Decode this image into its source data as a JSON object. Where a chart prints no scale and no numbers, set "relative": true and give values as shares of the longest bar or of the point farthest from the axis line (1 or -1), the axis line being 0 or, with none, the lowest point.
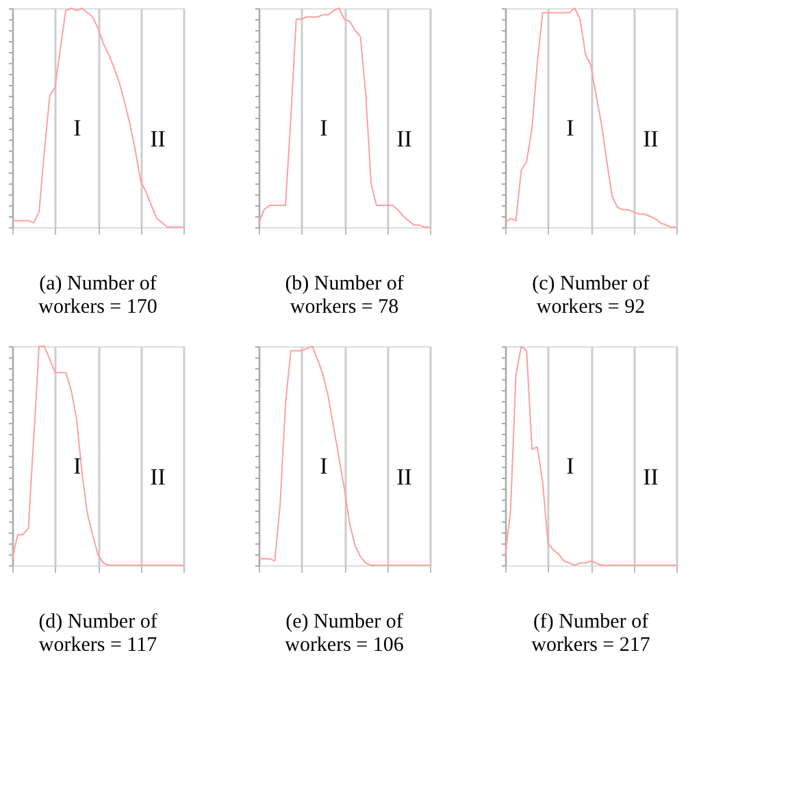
{
  "chart_data": [
    {
      "type": "line",
      "relative": true,
      "title": "(a) Number of workers = 170",
      "grid": "x",
      "tick_labels": false,
      "marker": "none",
      "line_style": "solid",
      "categories": [
        null,
        null,
        null,
        null,
        null,
        null,
        null,
        null,
        null,
        null,
        null,
        null,
        null,
        null,
        null,
        null,
        null,
        null,
        null,
        null,
        null,
        null,
        null,
        null,
        null,
        null,
        null,
        null,
        null,
        null,
        null,
        null,
        null
      ],
      "series": [
        {
          "color": "#ff9f9f",
          "values": [
            0.03,
            0.03,
            0.03,
            0.03,
            0.02,
            0.07,
            0.35,
            0.6,
            0.64,
            0.82,
            0.99,
            1.0,
            0.99,
            1.0,
            0.98,
            0.96,
            0.91,
            0.84,
            0.79,
            0.73,
            0.66,
            0.57,
            0.47,
            0.35,
            0.21,
            0.16,
            0.1,
            0.04,
            0.02,
            0.0,
            0.0,
            0.0,
            0.0
          ]
        }
      ],
      "annotations": [
        "I",
        "II"
      ]
    },
    {
      "type": "line",
      "relative": true,
      "title": "(b) Number of workers = 78",
      "grid": "x",
      "tick_labels": false,
      "marker": "none",
      "line_style": "solid",
      "categories": [
        null,
        null,
        null,
        null,
        null,
        null,
        null,
        null,
        null,
        null,
        null,
        null,
        null,
        null,
        null,
        null,
        null,
        null,
        null,
        null,
        null,
        null,
        null,
        null,
        null,
        null,
        null,
        null,
        null,
        null,
        null,
        null,
        null
      ],
      "series": [
        {
          "color": "#ff9f9f",
          "values": [
            0.02,
            0.08,
            0.1,
            0.1,
            0.1,
            0.1,
            0.5,
            0.95,
            0.95,
            0.96,
            0.96,
            0.96,
            0.97,
            0.97,
            0.99,
            1.0,
            0.95,
            0.94,
            0.9,
            0.87,
            0.61,
            0.2,
            0.1,
            0.1,
            0.1,
            0.1,
            0.08,
            0.05,
            0.03,
            0.01,
            0.01,
            0.0,
            0.0
          ]
        }
      ],
      "annotations": [
        "I",
        "II"
      ]
    },
    {
      "type": "line",
      "relative": true,
      "title": "(c) Number of workers = 92",
      "grid": "x",
      "tick_labels": false,
      "marker": "none",
      "line_style": "solid",
      "categories": [
        null,
        null,
        null,
        null,
        null,
        null,
        null,
        null,
        null,
        null,
        null,
        null,
        null,
        null,
        null,
        null,
        null,
        null,
        null,
        null,
        null,
        null,
        null,
        null,
        null,
        null,
        null,
        null,
        null,
        null,
        null,
        null,
        null
      ],
      "series": [
        {
          "color": "#ff9f9f",
          "values": [
            0.02,
            0.04,
            0.03,
            0.26,
            0.3,
            0.45,
            0.75,
            0.98,
            0.98,
            0.98,
            0.98,
            0.98,
            0.98,
            1.0,
            0.95,
            0.79,
            0.74,
            0.6,
            0.47,
            0.3,
            0.14,
            0.09,
            0.08,
            0.08,
            0.07,
            0.06,
            0.06,
            0.05,
            0.04,
            0.02,
            0.01,
            0.0,
            0.0
          ]
        }
      ],
      "annotations": [
        "I",
        "II"
      ]
    },
    {
      "type": "line",
      "relative": true,
      "title": "(d) Number of workers = 117",
      "grid": "x",
      "tick_labels": false,
      "marker": "none",
      "line_style": "solid",
      "categories": [
        null,
        null,
        null,
        null,
        null,
        null,
        null,
        null,
        null,
        null,
        null,
        null,
        null,
        null,
        null,
        null,
        null,
        null,
        null,
        null,
        null,
        null,
        null,
        null,
        null,
        null,
        null,
        null,
        null,
        null,
        null,
        null,
        null
      ],
      "series": [
        {
          "color": "#ff9f9f",
          "values": [
            0.03,
            0.14,
            0.14,
            0.17,
            0.58,
            1.0,
            1.0,
            0.94,
            0.88,
            0.88,
            0.88,
            0.8,
            0.67,
            0.43,
            0.24,
            0.14,
            0.05,
            0.01,
            0.0,
            0.0,
            0.0,
            0.0,
            0.0,
            0.0,
            0.0,
            0.0,
            0.0,
            0.0,
            0.0,
            0.0,
            0.0,
            0.0,
            0.0
          ]
        }
      ],
      "annotations": [
        "I",
        "II"
      ]
    },
    {
      "type": "line",
      "relative": true,
      "title": "(e) Number of workers = 106",
      "grid": "x",
      "tick_labels": false,
      "marker": "none",
      "line_style": "solid",
      "categories": [
        null,
        null,
        null,
        null,
        null,
        null,
        null,
        null,
        null,
        null,
        null,
        null,
        null,
        null,
        null,
        null,
        null,
        null,
        null,
        null,
        null,
        null,
        null,
        null,
        null,
        null,
        null,
        null,
        null,
        null,
        null,
        null,
        null
      ],
      "series": [
        {
          "color": "#ff9f9f",
          "values": [
            0.03,
            0.03,
            0.03,
            0.02,
            0.28,
            0.74,
            0.98,
            0.98,
            0.98,
            0.99,
            1.0,
            0.94,
            0.87,
            0.77,
            0.63,
            0.49,
            0.35,
            0.19,
            0.09,
            0.04,
            0.01,
            0.0,
            0.0,
            0.0,
            0.0,
            0.0,
            0.0,
            0.0,
            0.0,
            0.0,
            0.0,
            0.0,
            0.0
          ]
        }
      ],
      "annotations": [
        "I",
        "II"
      ]
    },
    {
      "type": "line",
      "relative": true,
      "title": "(f) Number of workers = 217",
      "grid": "x",
      "tick_labels": false,
      "marker": "none",
      "line_style": "solid",
      "categories": [
        null,
        null,
        null,
        null,
        null,
        null,
        null,
        null,
        null,
        null,
        null,
        null,
        null,
        null,
        null,
        null,
        null,
        null,
        null,
        null,
        null,
        null,
        null,
        null,
        null,
        null,
        null,
        null,
        null,
        null,
        null,
        null,
        null
      ],
      "series": [
        {
          "color": "#ff9f9f",
          "values": [
            0.04,
            0.25,
            0.87,
            1.0,
            0.98,
            0.53,
            0.54,
            0.38,
            0.1,
            0.07,
            0.05,
            0.02,
            0.01,
            0.0,
            0.01,
            0.01,
            0.02,
            0.01,
            0.0,
            0.0,
            0.0,
            0.0,
            0.0,
            0.0,
            0.0,
            0.0,
            0.0,
            0.0,
            0.0,
            0.0,
            0.0,
            0.0,
            0.0
          ]
        }
      ],
      "annotations": [
        "I",
        "II"
      ]
    }
  ]
}
